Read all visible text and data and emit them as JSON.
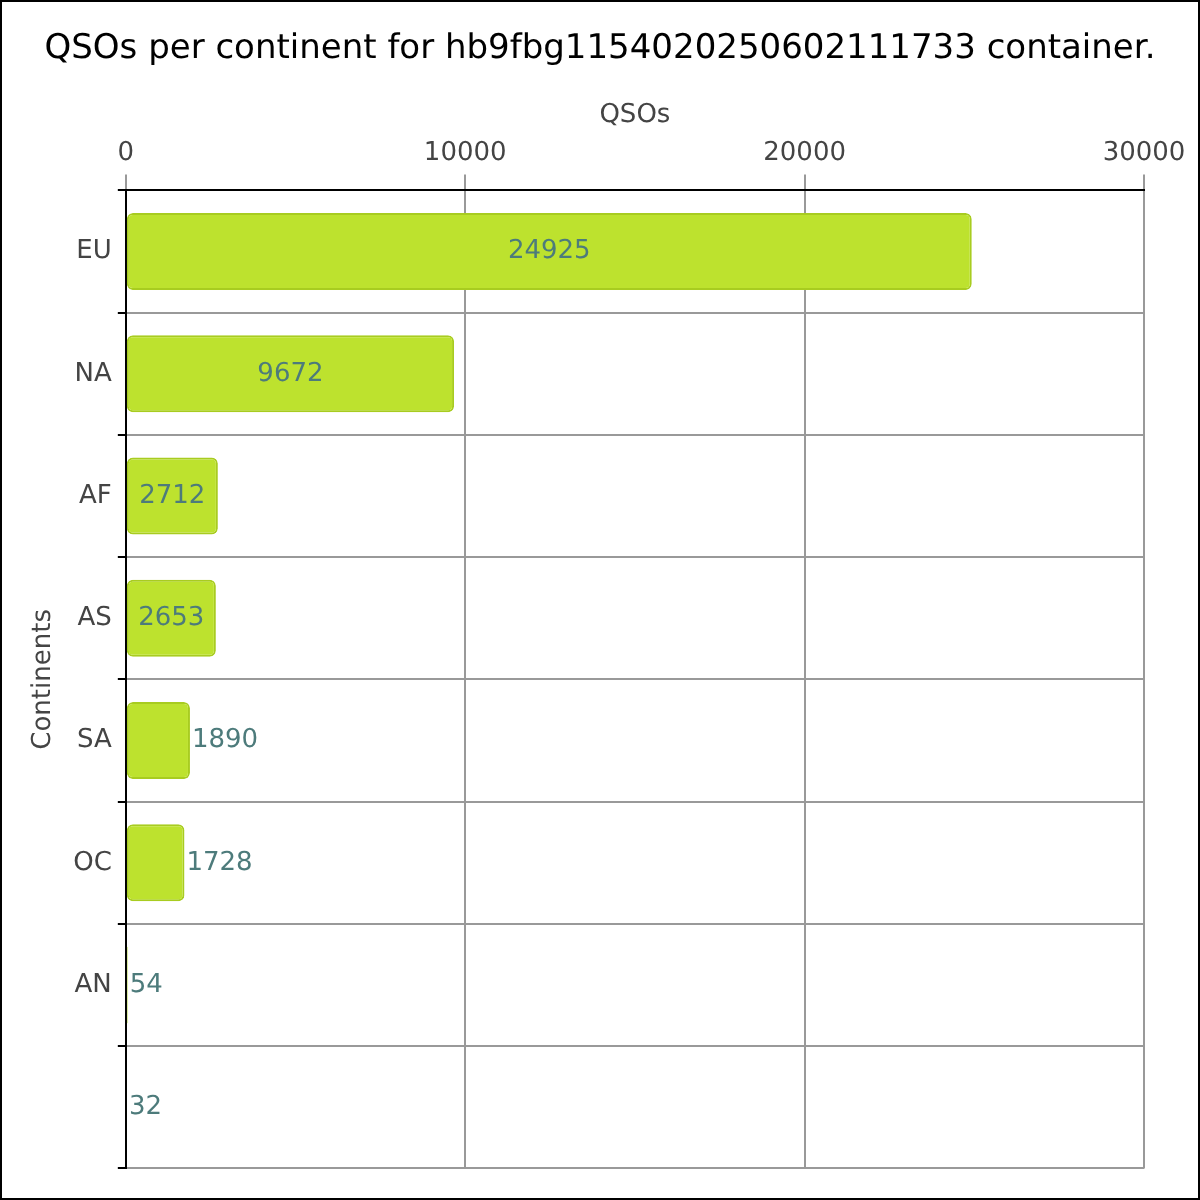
{
  "chart_data": {
    "type": "bar",
    "orientation": "horizontal",
    "title": "QSOs per continent for hb9fbg1154020250602111733 container.",
    "xlabel": "QSOs",
    "ylabel": "Continents",
    "categories": [
      "EU",
      "NA",
      "AF",
      "AS",
      "SA",
      "OC",
      "AN",
      null
    ],
    "values": [
      24925,
      9672,
      2712,
      2653,
      1890,
      1728,
      54,
      32
    ],
    "color": "#bde22e",
    "xlim": [
      0,
      30000
    ],
    "xticks": [
      0,
      10000,
      20000,
      30000
    ],
    "grid": true,
    "data_labels": true,
    "legend": false
  }
}
